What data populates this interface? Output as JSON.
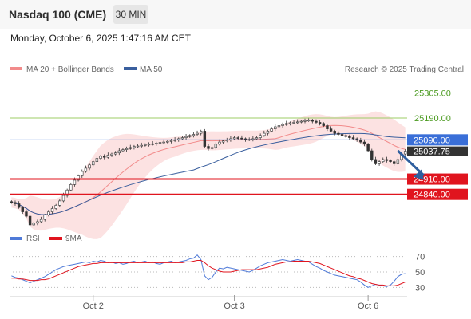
{
  "header": {
    "title": "Nasdaq 100 (CME)",
    "timeframe": "30 MIN",
    "datetime": "Monday, October 6, 2025 1:47:16 AM CET"
  },
  "watermark": "Research © 2025 Trading Central",
  "colors": {
    "bollinger": "#f28b8b",
    "ma50": "#3a5f9e",
    "resistance": "#9ccc65",
    "pivot": "#3a6fd8",
    "support": "#e0141e",
    "rsi": "#4f7ad8",
    "rsi_ma": "#e0141e",
    "bull": "#2e8b2e",
    "bear": "#cc2222",
    "forecast_arrow": "#2f5f9f"
  },
  "chart_data": [
    {
      "type": "candlestick",
      "legend": [
        "MA 20 + Bollinger Bands",
        "MA 50"
      ],
      "y_range": [
        24700,
        25380
      ],
      "x_ticks": [
        {
          "label": "Oct 2",
          "index": 22
        },
        {
          "label": "Oct 3",
          "index": 60
        },
        {
          "label": "Oct 6",
          "index": 96
        }
      ],
      "levels": [
        {
          "label": "25305.00",
          "value": 25305,
          "kind": "resistance"
        },
        {
          "label": "25190.00",
          "value": 25190,
          "kind": "resistance"
        },
        {
          "label": "25090.00",
          "value": 25090,
          "kind": "pivot"
        },
        {
          "label": "24910.00",
          "value": 24910,
          "kind": "support"
        },
        {
          "label": "24840.00",
          "value": 24840,
          "kind": "support"
        }
      ],
      "last_price": {
        "label": "25037.75",
        "value": 25037.75
      },
      "forecast_arrow": {
        "from_index": 104,
        "from_value": 25040,
        "to_index": 111,
        "to_value": 24905
      },
      "close": [
        24803,
        24797,
        24780,
        24760,
        24740,
        24700,
        24708,
        24715,
        24725,
        24745,
        24760,
        24775,
        24790,
        24810,
        24835,
        24860,
        24885,
        24905,
        24925,
        24945,
        24960,
        24975,
        24990,
        25005,
        25015,
        25010,
        25020,
        25025,
        25030,
        25040,
        25045,
        25050,
        25055,
        25060,
        25062,
        25065,
        25068,
        25070,
        25072,
        25075,
        25078,
        25080,
        25083,
        25086,
        25090,
        25095,
        25100,
        25105,
        25110,
        25115,
        25120,
        25130,
        25060,
        25050,
        25055,
        25070,
        25080,
        25085,
        25090,
        25095,
        25100,
        25098,
        25095,
        25090,
        25092,
        25095,
        25100,
        25110,
        25120,
        25130,
        25140,
        25150,
        25155,
        25160,
        25165,
        25168,
        25170,
        25172,
        25175,
        25178,
        25180,
        25175,
        25170,
        25165,
        25155,
        25140,
        25130,
        25120,
        25115,
        25110,
        25105,
        25100,
        25095,
        25090,
        25080,
        25070,
        25040,
        25000,
        24980,
        24990,
        25000,
        24995,
        24990,
        24980,
        25000,
        25025,
        25038
      ]
    },
    {
      "type": "line",
      "legend": [
        "RSI",
        "9MA"
      ],
      "y_range": [
        20,
        80
      ],
      "y_ticks": [
        70,
        50,
        30
      ],
      "series": [
        {
          "name": "RSI",
          "values": [
            45,
            43,
            42,
            40,
            38,
            36,
            38,
            40,
            42,
            44,
            47,
            50,
            53,
            55,
            57,
            58,
            59,
            60,
            61,
            62,
            63,
            62,
            64,
            63,
            65,
            64,
            62,
            63,
            61,
            62,
            60,
            61,
            63,
            64,
            62,
            63,
            64,
            62,
            63,
            61,
            60,
            62,
            63,
            64,
            62,
            63,
            64,
            65,
            67,
            68,
            72,
            66,
            45,
            40,
            43,
            50,
            55,
            54,
            56,
            55,
            54,
            53,
            52,
            51,
            50,
            52,
            55,
            58,
            60,
            62,
            63,
            64,
            65,
            66,
            65,
            64,
            65,
            66,
            65,
            64,
            63,
            60,
            57,
            55,
            52,
            50,
            48,
            46,
            45,
            44,
            43,
            42,
            41,
            40,
            37,
            33,
            30,
            32,
            34,
            33,
            32,
            31,
            33,
            38,
            44,
            47,
            48
          ]
        },
        {
          "name": "9MA",
          "values": [
            42,
            42,
            41,
            41,
            40,
            39,
            39,
            39,
            40,
            40,
            41,
            43,
            45,
            47,
            49,
            51,
            53,
            55,
            57,
            58,
            59,
            60,
            61,
            61,
            62,
            62,
            62,
            62,
            62,
            62,
            62,
            62,
            62,
            62,
            62,
            62,
            62,
            62,
            62,
            62,
            62,
            62,
            62,
            62,
            62,
            62,
            62,
            63,
            63,
            64,
            65,
            65,
            62,
            58,
            55,
            53,
            51,
            50,
            50,
            50,
            51,
            52,
            53,
            53,
            53,
            53,
            53,
            54,
            55,
            56,
            58,
            60,
            61,
            62,
            63,
            63,
            64,
            64,
            64,
            64,
            64,
            63,
            62,
            61,
            59,
            57,
            55,
            53,
            51,
            49,
            47,
            45,
            44,
            42,
            41,
            39,
            37,
            35,
            34,
            33,
            33,
            32,
            32,
            32,
            33,
            35,
            37
          ]
        }
      ]
    }
  ]
}
